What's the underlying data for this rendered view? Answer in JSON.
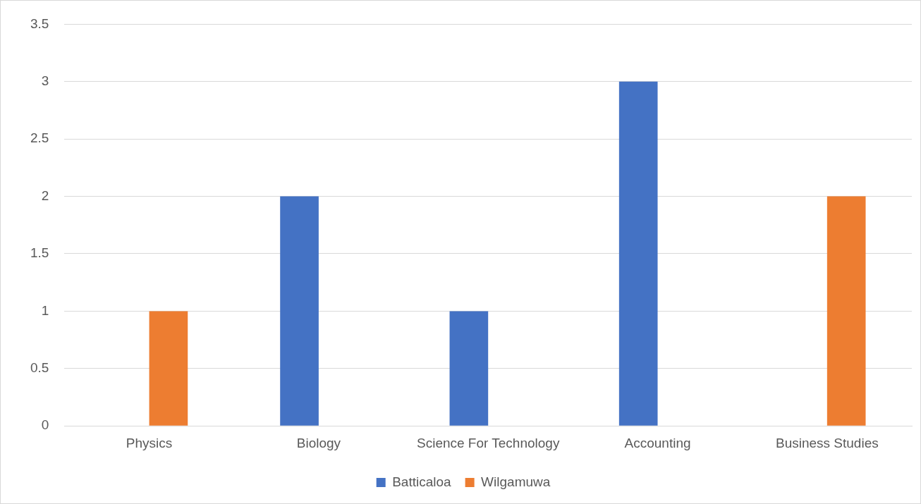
{
  "chart_data": {
    "type": "bar",
    "categories": [
      "Physics",
      "Biology",
      "Science For Technology",
      "Accounting",
      "Business Studies"
    ],
    "series": [
      {
        "name": "Batticaloa",
        "color": "#4472c4",
        "values": [
          0,
          2,
          1,
          3,
          0
        ]
      },
      {
        "name": "Wilgamuwa",
        "color": "#ed7d31",
        "values": [
          1,
          0,
          0,
          0,
          2
        ]
      }
    ],
    "ylim": [
      0,
      3.5
    ],
    "yticks": [
      0,
      0.5,
      1,
      1.5,
      2,
      2.5,
      3,
      3.5
    ],
    "grid": "y",
    "legend": "bottom"
  }
}
